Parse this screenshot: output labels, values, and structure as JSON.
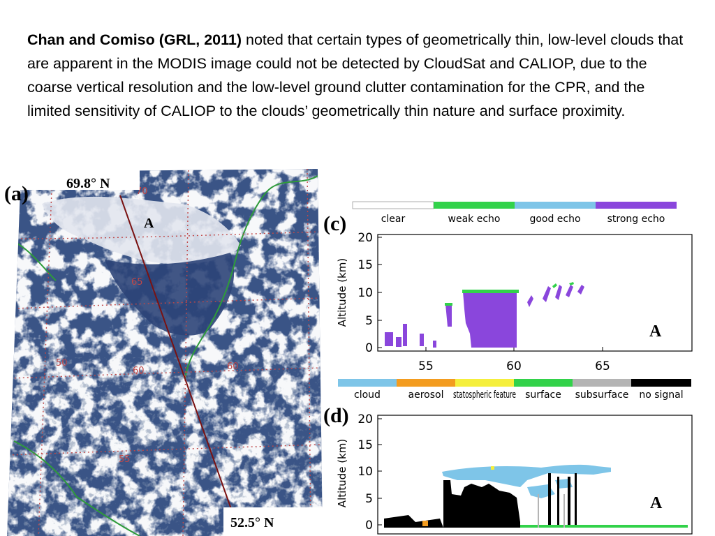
{
  "paragraph": {
    "bold_lead": "Chan and Comiso (GRL, 2011)",
    "body": " noted that certain types of geometrically thin, low-level clouds that are apparent in the MODIS image could not be detected by CloudSat and CALIOP, due to the coarse vertical resolution and the low-level ground clutter contamination for the CPR, and the limited sensitivity of CALIOP to the clouds’ geometrically thin nature and surface proximity."
  },
  "panel_a": {
    "letter": "(a)",
    "top_lat_label": "69.8° N",
    "bottom_lat_label": "52.5° N",
    "point_label": "A",
    "grid_labels": [
      "70",
      "65",
      "60",
      "60",
      "50",
      "55"
    ],
    "colors": {
      "ocean": "#3a5486",
      "cloud": "#e9ecf2",
      "coast": "#2e9b3a",
      "grid": "#c04848",
      "track": "#7a1212"
    }
  },
  "panel_c": {
    "letter": "(c)",
    "legend": [
      {
        "label": "clear",
        "color": "#ffffff"
      },
      {
        "label": "weak echo",
        "color": "#32d24a"
      },
      {
        "label": "good echo",
        "color": "#7ec5e8"
      },
      {
        "label": "strong echo",
        "color": "#8a46dc"
      }
    ],
    "ylabel": "Altitude (km)",
    "yticks": [
      "0",
      "5",
      "10",
      "15",
      "20"
    ],
    "xticks": [
      "55",
      "60",
      "65"
    ],
    "point_label": "A"
  },
  "panel_d": {
    "letter": "(d)",
    "legend": [
      {
        "label": "cloud",
        "color": "#7ec5e8"
      },
      {
        "label": "aerosol",
        "color": "#f39c1f"
      },
      {
        "label": "statospheric feature",
        "color": "#f5ef3c"
      },
      {
        "label": "surface",
        "color": "#32d24a"
      },
      {
        "label": "subsurface",
        "color": "#b4b4b4"
      },
      {
        "label": "no signal",
        "color": "#000000"
      }
    ],
    "ylabel": "Altitude (km)",
    "yticks": [
      "0",
      "5",
      "10",
      "15",
      "20"
    ],
    "point_label": "A"
  }
}
